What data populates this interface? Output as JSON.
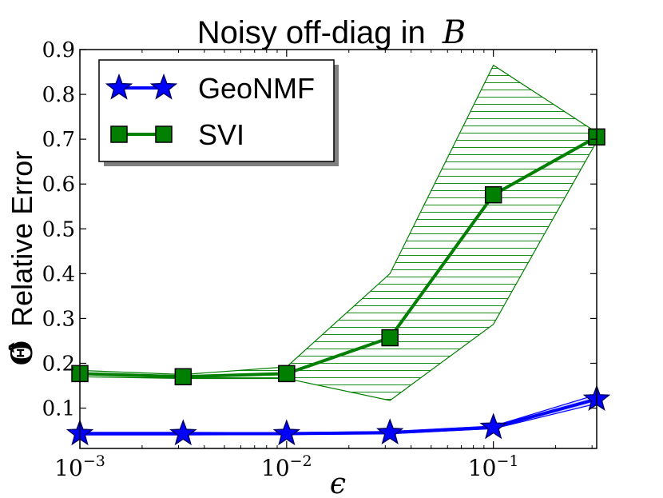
{
  "chart_data": {
    "type": "line",
    "title": "Noisy off-diag in",
    "title_math": "B",
    "xlabel": "ϵ",
    "ylabel": "Relative Error",
    "ylabel_symbol": "Θ̂",
    "x_scale": "log",
    "x": [
      0.001,
      0.00316,
      0.01,
      0.0316,
      0.1,
      0.316
    ],
    "xlim": [
      0.001,
      0.316
    ],
    "ylim": [
      0.01,
      0.9
    ],
    "x_ticks": [
      {
        "value": 0.001,
        "base": "10",
        "exp": "−3"
      },
      {
        "value": 0.01,
        "base": "10",
        "exp": "−2"
      },
      {
        "value": 0.1,
        "base": "10",
        "exp": "−1"
      }
    ],
    "y_ticks": [
      {
        "value": 0.1,
        "label": "0.1"
      },
      {
        "value": 0.2,
        "label": "0.2"
      },
      {
        "value": 0.3,
        "label": "0.3"
      },
      {
        "value": 0.4,
        "label": "0.4"
      },
      {
        "value": 0.5,
        "label": "0.5"
      },
      {
        "value": 0.6,
        "label": "0.6"
      },
      {
        "value": 0.7,
        "label": "0.7"
      },
      {
        "value": 0.8,
        "label": "0.8"
      },
      {
        "value": 0.9,
        "label": "0.9"
      }
    ],
    "grid": false,
    "legend_position": "top-left",
    "series": [
      {
        "name": "GeoNMF",
        "color": "#0000ff",
        "edge_color": "#000066",
        "marker": "star",
        "values": [
          0.043,
          0.043,
          0.043,
          0.045,
          0.057,
          0.12
        ],
        "band_upper": [
          0.046,
          0.046,
          0.045,
          0.048,
          0.06,
          0.13
        ],
        "band_lower": [
          0.04,
          0.04,
          0.041,
          0.043,
          0.054,
          0.11
        ]
      },
      {
        "name": "SVI",
        "color": "#007f00",
        "edge_color": "#000000",
        "marker": "square",
        "values": [
          0.177,
          0.17,
          0.177,
          0.257,
          0.576,
          0.705
        ],
        "band_upper": [
          0.184,
          0.175,
          0.192,
          0.4,
          0.865,
          0.715
        ],
        "band_lower": [
          0.17,
          0.166,
          0.166,
          0.117,
          0.287,
          0.695
        ]
      }
    ]
  }
}
